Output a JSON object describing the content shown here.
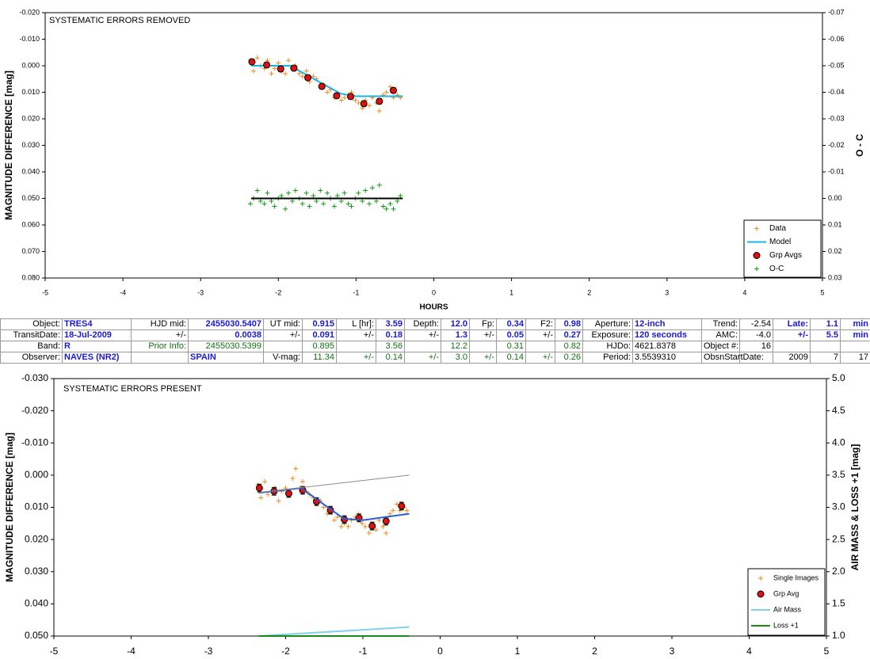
{
  "chart_data": [
    {
      "type": "scatter",
      "title": "SYSTEMATIC ERRORS REMOVED",
      "x_label": "HOURS",
      "y_label": "MAGNITUDE DIFFERENCE [mag]",
      "y2_label": "O - C",
      "xlim": [
        -5,
        5
      ],
      "xticks": [
        -5,
        -4,
        -3,
        -2,
        -1,
        0,
        1,
        2,
        3,
        4,
        5
      ],
      "ylim": [
        -0.02,
        0.08
      ],
      "y_inverted": true,
      "yticks": [
        {
          "value": -0.02,
          "label": "-0.020"
        },
        {
          "value": -0.01,
          "label": "-0.010"
        },
        {
          "value": 0,
          "label": "0.000"
        },
        {
          "value": 0.01,
          "label": "0.010"
        },
        {
          "value": 0.02,
          "label": "0.020"
        },
        {
          "value": 0.03,
          "label": "0.030"
        },
        {
          "value": 0.04,
          "label": "0.040"
        },
        {
          "value": 0.05,
          "label": "0.050"
        },
        {
          "value": 0.06,
          "label": "0.060"
        },
        {
          "value": 0.07,
          "label": "0.070"
        },
        {
          "value": 0.08,
          "label": "0.080"
        }
      ],
      "y2lim": [
        -0.07,
        0.03
      ],
      "y2_inverted": true,
      "y2ticks": [
        {
          "value": -0.07,
          "label": "-0.07"
        },
        {
          "value": -0.06,
          "label": "-0.06"
        },
        {
          "value": -0.05,
          "label": "-0.05"
        },
        {
          "value": -0.04,
          "label": "-0.04"
        },
        {
          "value": -0.03,
          "label": "-0.03"
        },
        {
          "value": -0.02,
          "label": "-0.02"
        },
        {
          "value": -0.01,
          "label": "-0.01"
        },
        {
          "value": 0,
          "label": "0.00"
        },
        {
          "value": 0.01,
          "label": "0.01"
        },
        {
          "value": 0.02,
          "label": "0.02"
        },
        {
          "value": 0.03,
          "label": "0.03"
        }
      ],
      "grid": false,
      "legend": "lower right",
      "series": [
        {
          "name": "Data",
          "color": "#f08a1c",
          "marker": "plus",
          "x": [
            -2.36,
            -2.32,
            -2.27,
            -2.23,
            -2.18,
            -2.14,
            -2.09,
            -2.05,
            -2.0,
            -1.96,
            -1.91,
            -1.87,
            -1.82,
            -1.78,
            -1.73,
            -1.69,
            -1.64,
            -1.6,
            -1.55,
            -1.51,
            -1.46,
            -1.42,
            -1.37,
            -1.33,
            -1.28,
            -1.24,
            -1.19,
            -1.15,
            -1.1,
            -1.06,
            -1.01,
            -0.97,
            -0.92,
            -0.88,
            -0.83,
            -0.79,
            -0.74,
            -0.7,
            -0.65,
            -0.61,
            -0.56,
            -0.52,
            -0.47,
            -0.43
          ],
          "values": [
            -0.002,
            0.002,
            -0.003,
            0.0,
            0.001,
            -0.002,
            0.003,
            0.001,
            -0.001,
            0.002,
            0.003,
            -0.002,
            0.001,
            0.0,
            0.003,
            0.004,
            0.002,
            0.006,
            0.004,
            0.005,
            0.008,
            0.007,
            0.01,
            0.009,
            0.012,
            0.011,
            0.013,
            0.012,
            0.011,
            0.01,
            0.013,
            0.014,
            0.016,
            0.013,
            0.015,
            0.012,
            0.014,
            0.017,
            0.011,
            0.01,
            0.008,
            0.012,
            0.011,
            0.012
          ]
        },
        {
          "name": "Model",
          "color": "#19b5e6",
          "marker": "line",
          "x": [
            -2.35,
            -1.85,
            -1.2,
            -1.0,
            -0.4
          ],
          "values": [
            0.0,
            0.0,
            0.0105,
            0.0115,
            0.0115
          ]
        },
        {
          "name": "Grp Avgs",
          "color": "#e01010",
          "marker": "circle",
          "x": [
            -2.34,
            -2.15,
            -1.97,
            -1.8,
            -1.62,
            -1.44,
            -1.25,
            -1.07,
            -0.9,
            -0.7,
            -0.52
          ],
          "values": [
            -0.0015,
            -0.0003,
            0.0012,
            0.0009,
            0.0045,
            0.0078,
            0.0113,
            0.0116,
            0.0143,
            0.0134,
            0.0093
          ],
          "errors": [
            0.001,
            0.001,
            0.001,
            0.001,
            0.001,
            0.001,
            0.001,
            0.001,
            0.001,
            0.001,
            0.001
          ]
        },
        {
          "name": "O-C",
          "color": "#139a13",
          "marker": "plus",
          "axis": "y2",
          "x": [
            -2.36,
            -2.32,
            -2.27,
            -2.23,
            -2.18,
            -2.14,
            -2.09,
            -2.05,
            -2.0,
            -1.96,
            -1.91,
            -1.87,
            -1.82,
            -1.78,
            -1.73,
            -1.69,
            -1.64,
            -1.6,
            -1.55,
            -1.51,
            -1.46,
            -1.42,
            -1.37,
            -1.33,
            -1.28,
            -1.24,
            -1.19,
            -1.15,
            -1.1,
            -1.06,
            -1.01,
            -0.97,
            -0.92,
            -0.88,
            -0.83,
            -0.79,
            -0.74,
            -0.7,
            -0.65,
            -0.61,
            -0.56,
            -0.52,
            -0.47,
            -0.43
          ],
          "values": [
            0.002,
            0.0,
            -0.003,
            0.001,
            0.002,
            -0.002,
            0.001,
            0.003,
            0.0,
            -0.001,
            0.004,
            -0.002,
            0.001,
            -0.003,
            0.0,
            0.002,
            -0.002,
            0.003,
            -0.001,
            0.001,
            -0.003,
            0.002,
            -0.002,
            0.0,
            0.003,
            -0.001,
            0.001,
            -0.002,
            0.002,
            0.003,
            0.0,
            -0.002,
            0.001,
            -0.003,
            0.002,
            -0.004,
            0.001,
            -0.005,
            0.003,
            0.004,
            0.002,
            0.004,
            0.001,
            -0.001
          ]
        },
        {
          "color": "#000000",
          "marker": "line",
          "axis": "y2",
          "x": [
            -2.35,
            -0.4
          ],
          "values": [
            0.0,
            0.0
          ]
        }
      ]
    },
    {
      "type": "scatter",
      "title": "SYSTEMATIC ERRORS PRESENT",
      "y_label": "MAGNITUDE DIFFERENCE [mag]",
      "y2_label": "AIR MASS & LOSS +1 [mag]",
      "xlim": [
        -5,
        5
      ],
      "xticks": [
        -5,
        -4,
        -3,
        -2,
        -1,
        0,
        1,
        2,
        3,
        4,
        5
      ],
      "ylim": [
        -0.03,
        0.05
      ],
      "y_inverted": true,
      "yticks": [
        {
          "value": -0.03,
          "label": "-0.030"
        },
        {
          "value": -0.02,
          "label": "-0.020"
        },
        {
          "value": -0.01,
          "label": "-0.010"
        },
        {
          "value": 0,
          "label": "0.000"
        },
        {
          "value": 0.01,
          "label": "0.010"
        },
        {
          "value": 0.02,
          "label": "0.020"
        },
        {
          "value": 0.03,
          "label": "0.030"
        },
        {
          "value": 0.04,
          "label": "0.040"
        },
        {
          "value": 0.05,
          "label": "0.050"
        }
      ],
      "y2lim": [
        1.0,
        5.0
      ],
      "y2_inverted": false,
      "y2ticks": [
        {
          "value": 1,
          "label": "1.0"
        },
        1.5,
        {
          "value": 2,
          "label": "2.0"
        },
        2.5,
        {
          "value": 3,
          "label": "3.0"
        },
        3.5,
        {
          "value": 4,
          "label": "4.0"
        },
        4.5,
        {
          "value": 5,
          "label": "5.0"
        }
      ],
      "grid": false,
      "legend": "lower right",
      "series": [
        {
          "name": "Single Images",
          "color": "#f08a1c",
          "marker": "plus",
          "x": [
            -2.36,
            -2.32,
            -2.27,
            -2.23,
            -2.18,
            -2.14,
            -2.09,
            -2.05,
            -2.0,
            -1.96,
            -1.91,
            -1.87,
            -1.82,
            -1.78,
            -1.73,
            -1.69,
            -1.64,
            -1.6,
            -1.55,
            -1.51,
            -1.46,
            -1.42,
            -1.37,
            -1.33,
            -1.28,
            -1.24,
            -1.19,
            -1.15,
            -1.1,
            -1.06,
            -1.01,
            -0.97,
            -0.92,
            -0.88,
            -0.83,
            -0.79,
            -0.74,
            -0.7,
            -0.65,
            -0.61,
            -0.56,
            -0.52,
            -0.47,
            -0.43
          ],
          "values": [
            0.003,
            0.007,
            0.002,
            0.006,
            0.005,
            0.004,
            0.008,
            0.005,
            0.004,
            0.006,
            0.001,
            -0.002,
            0.004,
            0.002,
            0.005,
            0.006,
            0.007,
            0.009,
            0.008,
            0.01,
            0.012,
            0.011,
            0.014,
            0.013,
            0.016,
            0.015,
            0.016,
            0.014,
            0.013,
            0.012,
            0.015,
            0.016,
            0.018,
            0.015,
            0.017,
            0.014,
            0.016,
            0.018,
            0.012,
            0.011,
            0.009,
            0.011,
            0.01,
            0.011
          ]
        },
        {
          "name": "Grp Avg",
          "color": "#e01010",
          "marker": "circle",
          "x": [
            -2.34,
            -2.15,
            -1.96,
            -1.78,
            -1.6,
            -1.42,
            -1.24,
            -1.05,
            -0.88,
            -0.7,
            -0.5
          ],
          "values": [
            0.004,
            0.005,
            0.0057,
            0.0047,
            0.0082,
            0.0109,
            0.0138,
            0.0133,
            0.0158,
            0.0143,
            0.0096
          ],
          "errors": [
            0.0012,
            0.0012,
            0.0012,
            0.0012,
            0.0012,
            0.0012,
            0.0012,
            0.0012,
            0.0012,
            0.0012,
            0.0012
          ]
        },
        {
          "name": "Air Mass",
          "color": "#7fd0ea",
          "marker": "line",
          "axis": "y2",
          "x": [
            -2.35,
            -0.4
          ],
          "values": [
            1.0,
            1.14
          ]
        },
        {
          "name": "Loss +1",
          "color": "#1a8a1a",
          "marker": "line",
          "axis": "y2",
          "x": [
            -2.35,
            -0.4
          ],
          "values": [
            1.0,
            1.0
          ]
        },
        {
          "color": "#2a5fd0",
          "marker": "line",
          "x": [
            -2.35,
            -1.8,
            -1.25,
            -1.0,
            -0.4
          ],
          "values": [
            0.0055,
            0.004,
            0.0135,
            0.014,
            0.012
          ]
        },
        {
          "color": "#8c8c8c",
          "marker": "line",
          "x": [
            -2.35,
            -0.4
          ],
          "values": [
            0.0054,
            0.0
          ]
        }
      ]
    }
  ],
  "table": {
    "rows": [
      [
        "Object:",
        "TRES4",
        "HJD mid:",
        "2455030.5407",
        "UT mid:",
        "0.915",
        "L [hr]:",
        "3.59",
        "Depth:",
        "12.0",
        "Fp:",
        "0.34",
        "F2:",
        "0.98",
        "Aperture:",
        "12-inch",
        "Trend:",
        "-2.54",
        "Late:",
        "1.1",
        "min"
      ],
      [
        "TransitDate:",
        "18-Jul-2009",
        "+/-",
        "0.0038",
        "+/-",
        "0.091",
        "+/-",
        "0.18",
        "+/-",
        "1.3",
        "+/-",
        "0.05",
        "+/-",
        "0.27",
        "Exposure:",
        "120 seconds",
        "AMC:",
        "-4.0",
        "+/-",
        "5.5",
        "min"
      ],
      [
        "Band:",
        "R",
        "Prior Info:",
        "2455030.5399",
        null,
        "0.895",
        null,
        "3.56",
        null,
        "12.2",
        null,
        "0.31",
        null,
        "0.82",
        "HJDo:",
        "4621.8378",
        "Object #:",
        "16",
        null,
        null,
        null
      ],
      [
        "Observer:",
        "NAVES (NR2)",
        null,
        "SPAIN",
        "V-mag:",
        "11.34",
        "+/-",
        "0.14",
        "+/-",
        "3.0",
        "+/-",
        "0.14",
        "+/-",
        "0.26",
        "Period:",
        "3.5539310",
        "ObsnStartDate:",
        null,
        "2009",
        "7",
        "17"
      ]
    ]
  }
}
